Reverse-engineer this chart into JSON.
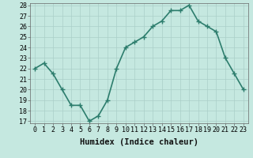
{
  "x": [
    0,
    1,
    2,
    3,
    4,
    5,
    6,
    7,
    8,
    9,
    10,
    11,
    12,
    13,
    14,
    15,
    16,
    17,
    18,
    19,
    20,
    21,
    22,
    23
  ],
  "y": [
    22,
    22.5,
    21.5,
    20,
    18.5,
    18.5,
    17,
    17.5,
    19,
    22,
    24,
    24.5,
    25,
    26,
    26.5,
    27.5,
    27.5,
    28,
    26.5,
    26,
    25.5,
    23,
    21.5,
    20
  ],
  "line_color": "#2d7d6d",
  "marker": "+",
  "marker_size": 4,
  "marker_lw": 1.0,
  "bg_color": "#c5e8e0",
  "grid_color": "#aacfc8",
  "xlabel": "Humidex (Indice chaleur)",
  "ylim": [
    17,
    28
  ],
  "yticks": [
    17,
    18,
    19,
    20,
    21,
    22,
    23,
    24,
    25,
    26,
    27,
    28
  ],
  "xticks": [
    0,
    1,
    2,
    3,
    4,
    5,
    6,
    7,
    8,
    9,
    10,
    11,
    12,
    13,
    14,
    15,
    16,
    17,
    18,
    19,
    20,
    21,
    22,
    23
  ],
  "xlabel_fontsize": 7.5,
  "tick_fontsize": 6.0,
  "linewidth": 1.2,
  "xlim_left": -0.5,
  "xlim_right": 23.5
}
